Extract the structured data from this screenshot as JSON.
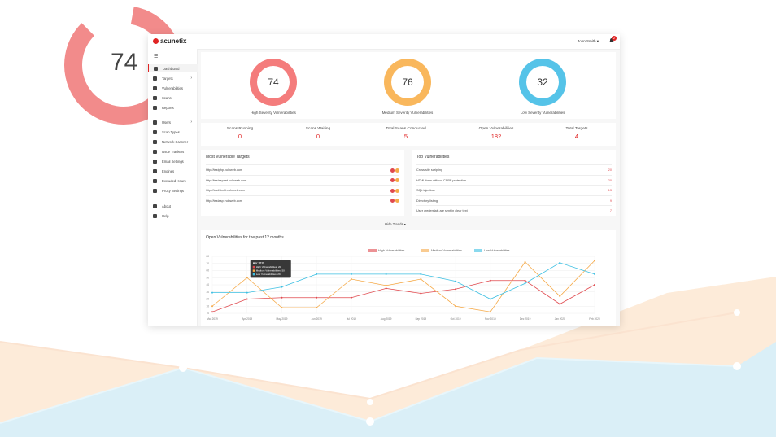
{
  "background": {
    "big_number": "74"
  },
  "app": {
    "logo": "acunetix",
    "user": "John Smith ▾",
    "notification_count": "2"
  },
  "sidebar": {
    "items": [
      {
        "label": "Dashboard",
        "icon": "dashboard-icon",
        "active": true
      },
      {
        "label": "Targets",
        "icon": "target-icon",
        "chevron": "›"
      },
      {
        "label": "Vulnerabilities",
        "icon": "bug-icon"
      },
      {
        "label": "Scans",
        "icon": "scan-icon"
      },
      {
        "label": "Reports",
        "icon": "report-icon"
      },
      {
        "label": "Users",
        "icon": "users-icon",
        "chevron": "›"
      },
      {
        "label": "Scan Types",
        "icon": "globe-icon"
      },
      {
        "label": "Network Scanner",
        "icon": "network-icon"
      },
      {
        "label": "Issue Trackers",
        "icon": "tracker-icon"
      },
      {
        "label": "Email Settings",
        "icon": "email-icon"
      },
      {
        "label": "Engines",
        "icon": "engine-icon"
      },
      {
        "label": "Excluded Hours",
        "icon": "clock-icon"
      },
      {
        "label": "Proxy Settings",
        "icon": "proxy-icon"
      },
      {
        "label": "About",
        "icon": "info-icon"
      },
      {
        "label": "Help",
        "icon": "help-icon"
      }
    ]
  },
  "gauges": [
    {
      "value": "74",
      "label": "High Severity Vulnerabilities",
      "color": "#f47c7c"
    },
    {
      "value": "76",
      "label": "Medium Severity Vulnerabilities",
      "color": "#f9b75c"
    },
    {
      "value": "32",
      "label": "Low Severity Vulnerabilities",
      "color": "#55c3e8"
    }
  ],
  "stats": [
    {
      "label": "Scans Running",
      "value": "0"
    },
    {
      "label": "Scans Waiting",
      "value": "0"
    },
    {
      "label": "Total Scans Conducted",
      "value": "5"
    },
    {
      "label": "Open Vulnerabilities",
      "value": "182"
    },
    {
      "label": "Total Targets",
      "value": "4"
    }
  ],
  "most_vulnerable": {
    "title": "Most Vulnerable Targets",
    "rows": [
      "http://testphp.vulnweb.com",
      "http://testaspnet.vulnweb.com",
      "http://testhtml5.vulnweb.com",
      "http://testasp.vulnweb.com"
    ]
  },
  "top_vulns": {
    "title": "Top Vulnerabilities",
    "rows": [
      {
        "name": "Cross site scripting",
        "count": "20"
      },
      {
        "name": "HTML form without CSRF protection",
        "count": "20"
      },
      {
        "name": "SQL injection",
        "count": "13"
      },
      {
        "name": "Directory listing",
        "count": "9"
      },
      {
        "name": "User credentials are sent in clear text",
        "count": "7"
      }
    ]
  },
  "hide_trends": "Hide Trends ▾",
  "trend": {
    "title": "Open Vulnerabilities for the past 12 months",
    "tooltip": {
      "title": "Apr 2019",
      "lines": [
        "High Vulnerabilities: 20",
        "Medium Vulnerabilities: 50",
        "Low Vulnerabilities: 29"
      ]
    }
  },
  "chart_data": {
    "type": "line",
    "categories": [
      "Mar 2019",
      "Apr 2019",
      "May 2019",
      "Jun 2019",
      "Jul 2019",
      "Aug 2019",
      "Sep 2019",
      "Oct 2019",
      "Nov 2019",
      "Dec 2019",
      "Jan 2020",
      "Feb 2020"
    ],
    "series": [
      {
        "name": "High Vulnerabilities",
        "color": "#e0494e",
        "values": [
          2,
          20,
          22,
          22,
          22,
          35,
          28,
          34,
          46,
          46,
          13,
          40
        ]
      },
      {
        "name": "Medium Vulnerabilities",
        "color": "#f5a947",
        "values": [
          10,
          50,
          8,
          8,
          48,
          39,
          48,
          10,
          2,
          72,
          24,
          74
        ]
      },
      {
        "name": "Low Vulnerabilities",
        "color": "#3cbfe2",
        "values": [
          29,
          29,
          37,
          55,
          55,
          55,
          55,
          45,
          20,
          42,
          71,
          55
        ]
      }
    ],
    "ylim": [
      0,
      80
    ],
    "yticks": [
      "80",
      "70",
      "60",
      "50",
      "40",
      "30",
      "20",
      "10",
      "0"
    ],
    "grid": true,
    "legend_position": "top"
  }
}
